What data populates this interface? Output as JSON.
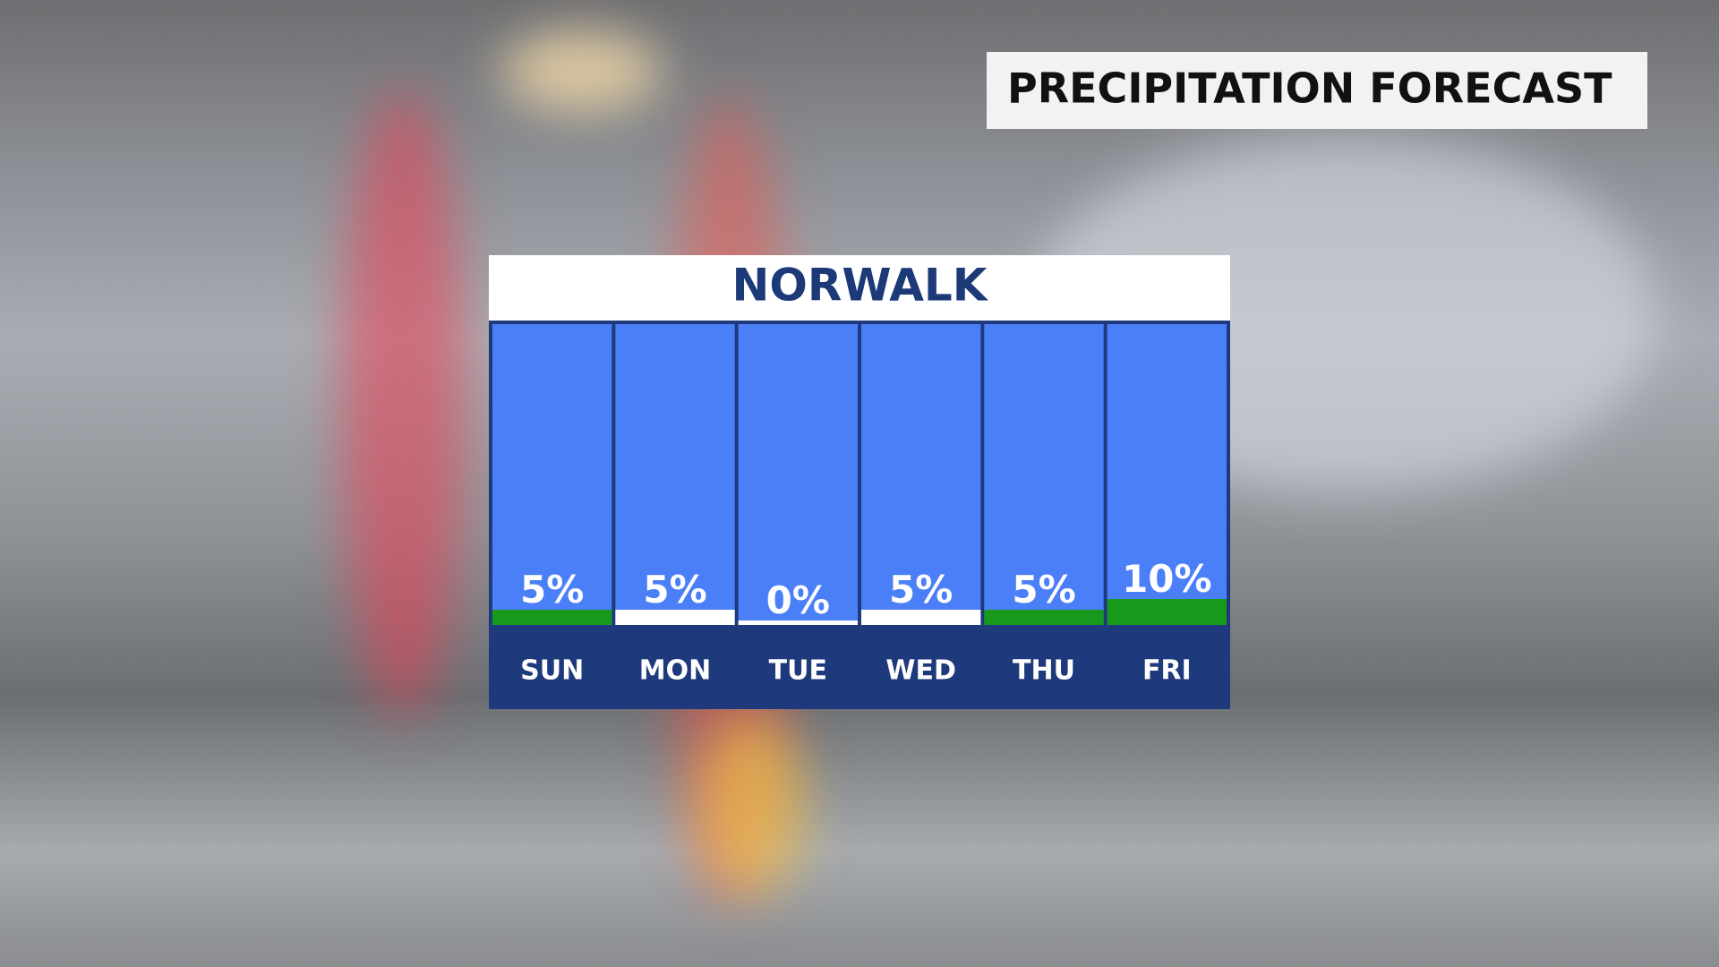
{
  "chart_data": {
    "type": "bar",
    "title": "PRECIPITATION FORECAST",
    "subtitle": "NORWALK",
    "categories": [
      "SUN",
      "MON",
      "TUE",
      "WED",
      "THU",
      "FRI"
    ],
    "values": [
      5,
      5,
      0,
      5,
      5,
      10
    ],
    "value_labels": [
      "5%",
      "5%",
      "0%",
      "5%",
      "5%",
      "10%"
    ],
    "colors": [
      "#179a1c",
      "#ffffff",
      "#ffffff",
      "#ffffff",
      "#179a1c",
      "#179a1c"
    ]
  }
}
